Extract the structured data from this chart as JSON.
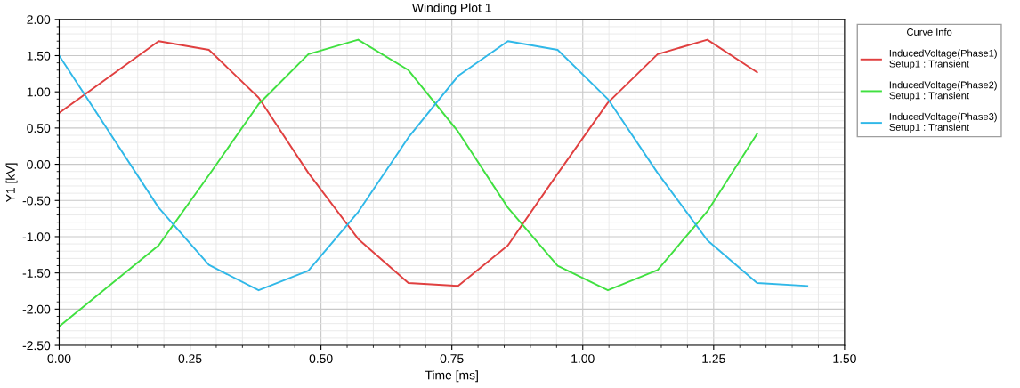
{
  "chart_data": {
    "type": "line",
    "title": "Winding Plot 1",
    "xlabel": "Time [ms]",
    "ylabel": "Y1 [kV]",
    "legend_title": "Curve Info",
    "x": [
      0,
      0.19,
      0.286,
      0.381,
      0.476,
      0.571,
      0.667,
      0.762,
      0.857,
      0.952,
      1.048,
      1.143,
      1.238,
      1.333,
      1.429
    ],
    "series": [
      {
        "name": "InducedVoltage(Phase1)\nSetup1 : Transient",
        "color": "#e04040",
        "values": [
          0.71,
          1.7,
          1.58,
          0.92,
          -0.12,
          -1.03,
          -1.64,
          -1.68,
          -1.12,
          -0.13,
          0.85,
          1.52,
          1.72,
          1.27,
          null
        ]
      },
      {
        "name": "InducedVoltage(Phase2)\nSetup1 : Transient",
        "color": "#40e040",
        "values": [
          -2.24,
          -1.12,
          -0.15,
          0.83,
          1.52,
          1.72,
          1.3,
          0.45,
          -0.6,
          -1.4,
          -1.74,
          -1.46,
          -0.65,
          0.42,
          null
        ]
      },
      {
        "name": "InducedVoltage(Phase3)\nSetup1 : Transient",
        "color": "#30b8e8",
        "values": [
          1.5,
          -0.6,
          -1.39,
          -1.74,
          -1.47,
          -0.66,
          0.37,
          1.22,
          1.7,
          1.58,
          0.9,
          -0.12,
          -1.05,
          -1.64,
          -1.68
        ]
      }
    ],
    "xlim": [
      0,
      1.5
    ],
    "xticks": [
      {
        "value": 0,
        "label": "0.00"
      },
      {
        "value": 0.25,
        "label": "0.25"
      },
      {
        "value": 0.5,
        "label": "0.50"
      },
      {
        "value": 0.75,
        "label": "0.75"
      },
      {
        "value": 1,
        "label": "1.00"
      },
      {
        "value": 1.25,
        "label": "1.25"
      },
      {
        "value": 1.5,
        "label": "1.50"
      }
    ],
    "ylim": [
      -2.5,
      2
    ],
    "yticks": [
      {
        "value": -2.5,
        "label": "-2.50"
      },
      {
        "value": -2,
        "label": "-2.00"
      },
      {
        "value": -1.5,
        "label": "-1.50"
      },
      {
        "value": -1,
        "label": "-1.00"
      },
      {
        "value": -0.5,
        "label": "-0.50"
      },
      {
        "value": 0,
        "label": "0.00"
      },
      {
        "value": 0.5,
        "label": "0.50"
      },
      {
        "value": 1,
        "label": "1.00"
      },
      {
        "value": 1.5,
        "label": "1.50"
      },
      {
        "value": 2,
        "label": "2.00"
      }
    ],
    "grid": true,
    "legend": "top right",
    "marker": "none",
    "line_style": "solid"
  }
}
